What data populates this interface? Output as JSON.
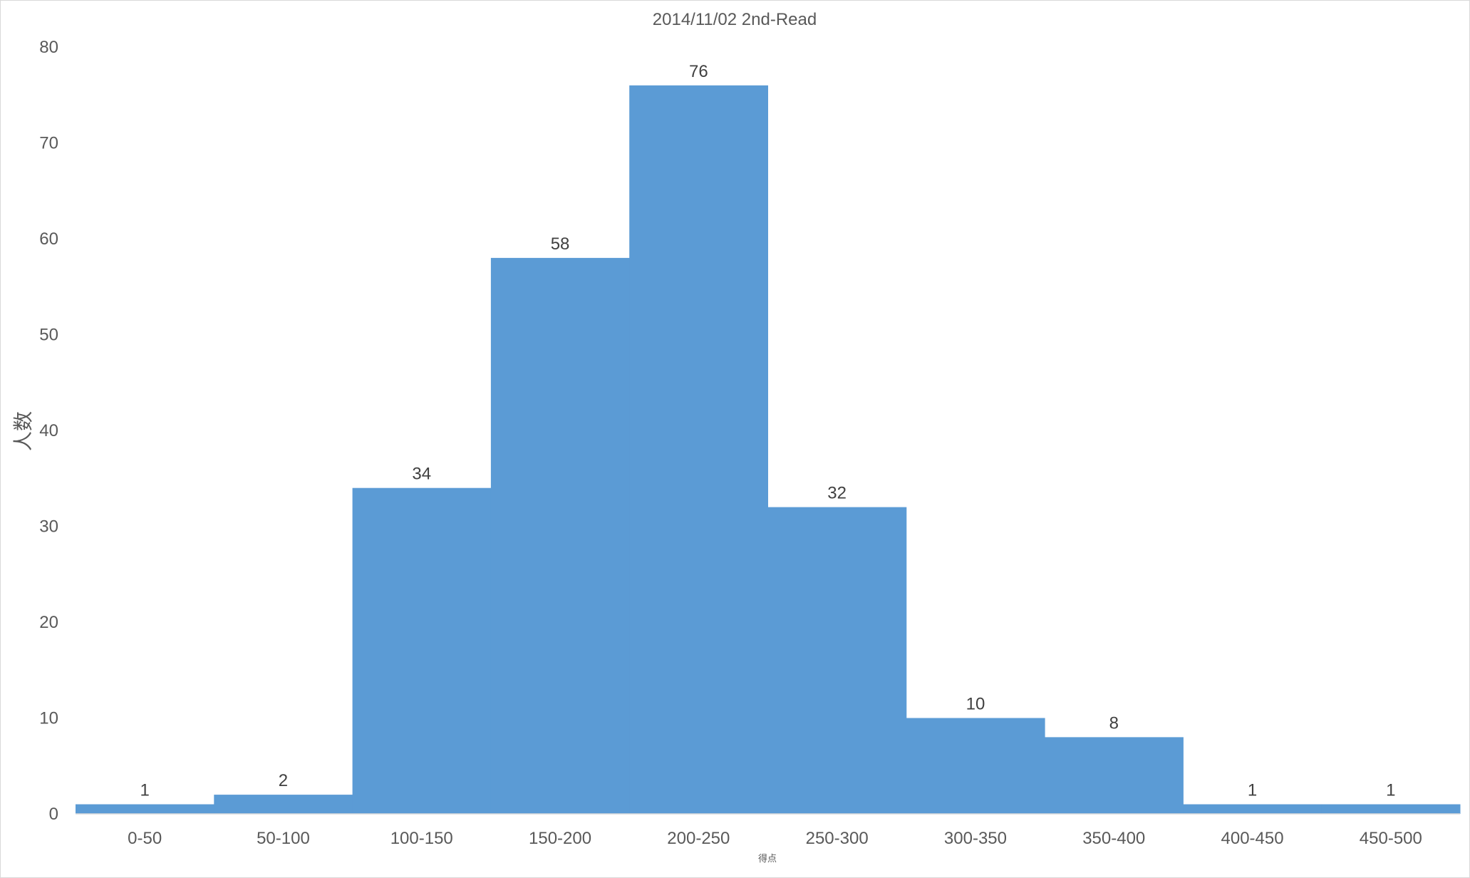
{
  "chart_data": {
    "type": "bar",
    "title": "2014/11/02 2nd-Read",
    "xlabel": "得点",
    "ylabel": "人数",
    "categories": [
      "0-50",
      "50-100",
      "100-150",
      "150-200",
      "200-250",
      "250-300",
      "300-350",
      "350-400",
      "400-450",
      "450-500"
    ],
    "values": [
      1,
      2,
      34,
      58,
      76,
      32,
      10,
      8,
      1,
      1
    ],
    "ylim": [
      0,
      80
    ],
    "yticks": [
      "0",
      "10",
      "20",
      "30",
      "40",
      "50",
      "60",
      "70",
      "80"
    ],
    "grid": false,
    "legend": "none",
    "data_labels": true,
    "bar_color": "#5b9bd5"
  }
}
